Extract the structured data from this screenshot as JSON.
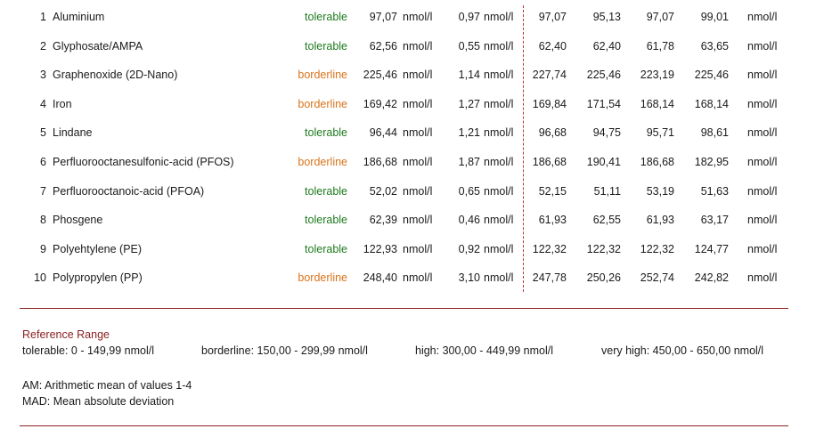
{
  "unit": "nmol/l",
  "rows": [
    {
      "num": "1",
      "name": "Aluminium",
      "status": "tolerable",
      "am": "97,07",
      "mad": "0,97",
      "values": [
        "97,07",
        "95,13",
        "97,07",
        "99,01"
      ]
    },
    {
      "num": "2",
      "name": "Glyphosate/AMPA",
      "status": "tolerable",
      "am": "62,56",
      "mad": "0,55",
      "values": [
        "62,40",
        "62,40",
        "61,78",
        "63,65"
      ]
    },
    {
      "num": "3",
      "name": "Graphenoxide (2D-Nano)",
      "status": "borderline",
      "am": "225,46",
      "mad": "1,14",
      "values": [
        "227,74",
        "225,46",
        "223,19",
        "225,46"
      ]
    },
    {
      "num": "4",
      "name": "Iron",
      "status": "borderline",
      "am": "169,42",
      "mad": "1,27",
      "values": [
        "169,84",
        "171,54",
        "168,14",
        "168,14"
      ]
    },
    {
      "num": "5",
      "name": "Lindane",
      "status": "tolerable",
      "am": "96,44",
      "mad": "1,21",
      "values": [
        "96,68",
        "94,75",
        "95,71",
        "98,61"
      ]
    },
    {
      "num": "6",
      "name": "Perfluorooctanesulfonic-acid (PFOS)",
      "status": "borderline",
      "am": "186,68",
      "mad": "1,87",
      "values": [
        "186,68",
        "190,41",
        "186,68",
        "182,95"
      ]
    },
    {
      "num": "7",
      "name": "Perfluorooctanoic-acid (PFOA)",
      "status": "tolerable",
      "am": "52,02",
      "mad": "0,65",
      "values": [
        "52,15",
        "51,11",
        "53,19",
        "51,63"
      ]
    },
    {
      "num": "8",
      "name": "Phosgene",
      "status": "tolerable",
      "am": "62,39",
      "mad": "0,46",
      "values": [
        "61,93",
        "62,55",
        "61,93",
        "63,17"
      ]
    },
    {
      "num": "9",
      "name": "Polyehtylene (PE)",
      "status": "tolerable",
      "am": "122,93",
      "mad": "0,92",
      "values": [
        "122,32",
        "122,32",
        "122,32",
        "124,77"
      ]
    },
    {
      "num": "10",
      "name": "Polypropylen (PP)",
      "status": "borderline",
      "am": "248,40",
      "mad": "3,10",
      "values": [
        "247,78",
        "250,26",
        "252,74",
        "242,82"
      ]
    }
  ],
  "reference": {
    "title": "Reference Range",
    "tolerable": "tolerable: 0 - 149,99 nmol/l",
    "borderline": "borderline: 150,00 - 299,99 nmol/l",
    "high": "high: 300,00 - 449,99 nmol/l",
    "very_high": "very high: 450,00 - 650,00 nmol/l"
  },
  "notes": {
    "am": "AM: Arithmetic mean of values 1-4",
    "mad": "MAD: Mean absolute deviation"
  },
  "colors": {
    "tolerable": "#1e7a1e",
    "borderline": "#d9731a",
    "accent": "#8b2020"
  }
}
